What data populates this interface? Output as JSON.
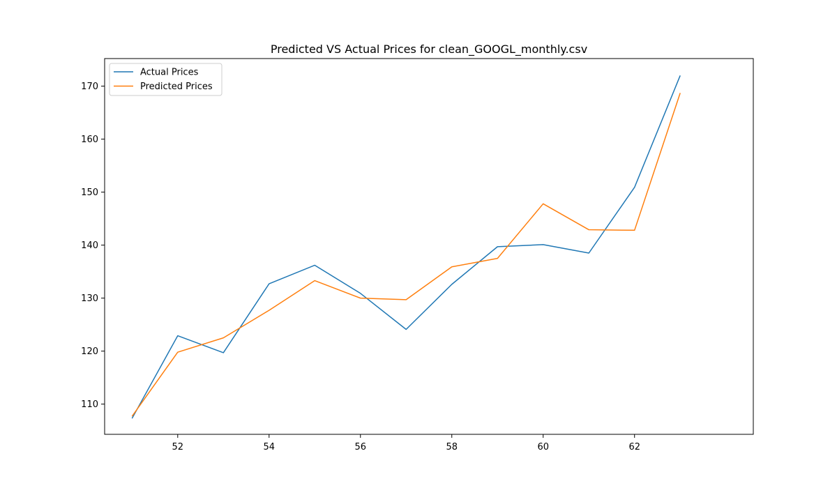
{
  "chart_data": {
    "type": "line",
    "title": "Predicted VS Actual Prices for clean_GOOGL_monthly.csv",
    "xlabel": "",
    "ylabel": "",
    "x": [
      51,
      52,
      53,
      54,
      55,
      56,
      57,
      58,
      59,
      60,
      61,
      62,
      63
    ],
    "xlim": [
      50.4,
      64.6
    ],
    "ylim": [
      104.3,
      175.2
    ],
    "xticks": [
      52,
      54,
      56,
      58,
      60,
      62
    ],
    "yticks": [
      110,
      120,
      130,
      140,
      150,
      160,
      170
    ],
    "grid": false,
    "legend_position": "top-left",
    "series": [
      {
        "name": "Actual Prices",
        "color": "#1f77b4",
        "values": [
          107.3,
          122.9,
          119.7,
          132.7,
          136.2,
          130.9,
          124.1,
          132.6,
          139.7,
          140.1,
          138.5,
          150.9,
          172.0
        ]
      },
      {
        "name": "Predicted Prices",
        "color": "#ff7f0e",
        "values": [
          107.7,
          119.8,
          122.5,
          127.7,
          133.3,
          130.0,
          129.7,
          135.9,
          137.5,
          147.8,
          142.9,
          142.8,
          168.7
        ]
      }
    ]
  }
}
